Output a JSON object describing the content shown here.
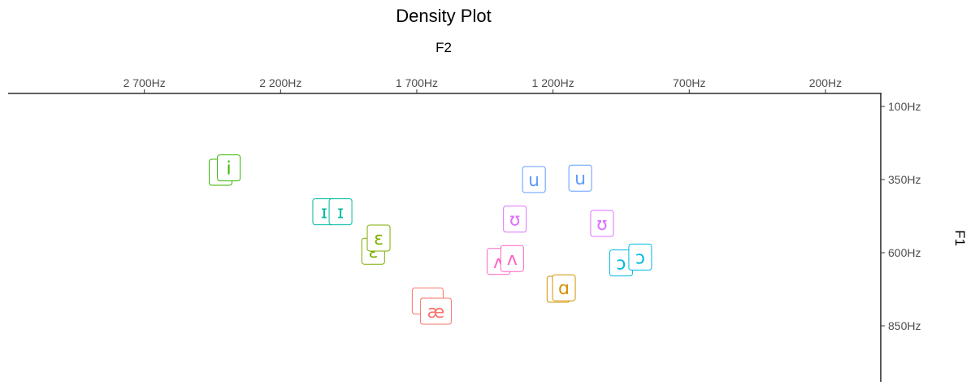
{
  "chart_data": {
    "type": "scatter",
    "title": "Density Plot",
    "xlabel": "F2",
    "ylabel": "F1",
    "x_axis": {
      "position": "top",
      "reversed": true,
      "range": [
        3200,
        0
      ],
      "ticks": [
        2700,
        2200,
        1700,
        1200,
        700,
        200
      ],
      "tick_labels": [
        "2 700Hz",
        "2 200Hz",
        "1 700Hz",
        "1 200Hz",
        "700Hz",
        "200Hz"
      ]
    },
    "y_axis": {
      "position": "right",
      "reversed": true,
      "range": [
        100,
        1090
      ],
      "ticks": [
        100,
        350,
        600,
        850
      ],
      "tick_labels": [
        "100Hz",
        "350Hz",
        "600Hz",
        "850Hz"
      ]
    },
    "grid": false,
    "legend": "none",
    "points": [
      {
        "label": "i",
        "f2": 2420,
        "f1": 325,
        "color": "#39B600"
      },
      {
        "label": "i",
        "f2": 2390,
        "f1": 310,
        "color": "#39B600"
      },
      {
        "label": "ɪ",
        "f2": 2040,
        "f1": 460,
        "color": "#00BB9F"
      },
      {
        "label": "ɪ",
        "f2": 1980,
        "f1": 460,
        "color": "#00BB9F"
      },
      {
        "label": "ɛ",
        "f2": 1860,
        "f1": 595,
        "color": "#7CAE00"
      },
      {
        "label": "ɛ",
        "f2": 1840,
        "f1": 550,
        "color": "#7CAE00"
      },
      {
        "label": "æ",
        "f2": 1660,
        "f1": 765,
        "color": "#F8766D"
      },
      {
        "label": "æ",
        "f2": 1630,
        "f1": 800,
        "color": "#F8766D"
      },
      {
        "label": "ʌ",
        "f2": 1400,
        "f1": 630,
        "color": "#FF61C3"
      },
      {
        "label": "ʌ",
        "f2": 1350,
        "f1": 620,
        "color": "#FF61C3"
      },
      {
        "label": "ʊ",
        "f2": 1340,
        "f1": 485,
        "color": "#DB72FB"
      },
      {
        "label": "ʊ",
        "f2": 1020,
        "f1": 500,
        "color": "#DB72FB"
      },
      {
        "label": "u",
        "f2": 1270,
        "f1": 350,
        "color": "#619CFF"
      },
      {
        "label": "u",
        "f2": 1100,
        "f1": 345,
        "color": "#619CFF"
      },
      {
        "label": "ɑ",
        "f2": 1180,
        "f1": 725,
        "color": "#D39200"
      },
      {
        "label": "ɑ",
        "f2": 1160,
        "f1": 720,
        "color": "#D39200"
      },
      {
        "label": "ɔ",
        "f2": 950,
        "f1": 635,
        "color": "#00B9E3"
      },
      {
        "label": "ɔ",
        "f2": 880,
        "f1": 615,
        "color": "#00B9E3"
      }
    ]
  }
}
